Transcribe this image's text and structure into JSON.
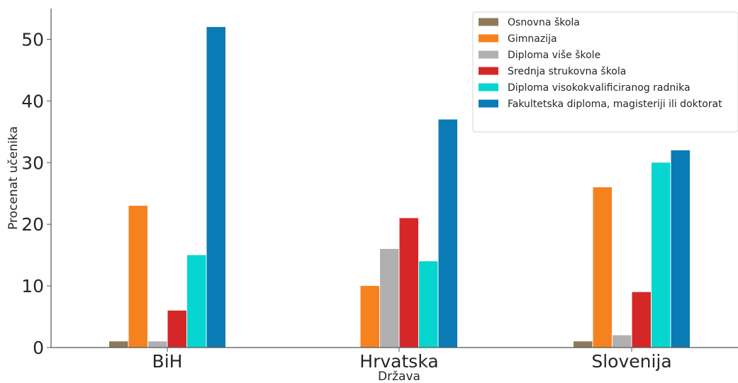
{
  "chart_data": {
    "type": "bar",
    "xlabel": "Država",
    "ylabel": "Procenat učenika",
    "ylim": [
      0,
      55
    ],
    "yticks": [
      0,
      10,
      20,
      30,
      40,
      50
    ],
    "grid": false,
    "legend_position": "top-right",
    "categories": [
      "BiH",
      "Hrvatska",
      "Slovenija"
    ],
    "series": [
      {
        "name": "Osnovna škola",
        "color": "#8c7a5b",
        "values": [
          1,
          0,
          1
        ]
      },
      {
        "name": "Gimnazija",
        "color": "#f5821f",
        "values": [
          23,
          10,
          26
        ]
      },
      {
        "name": "Diploma više škole",
        "color": "#b0b0b0",
        "values": [
          1,
          16,
          2
        ]
      },
      {
        "name": "Srednja strukovna škola",
        "color": "#d62728",
        "values": [
          6,
          21,
          9
        ]
      },
      {
        "name": "Diploma visokokvalificiranog radnika",
        "color": "#06d6d0",
        "values": [
          15,
          14,
          30
        ]
      },
      {
        "name": "Fakultetska diploma, magisteriji ili doktorat",
        "color": "#0a7bb5",
        "values": [
          52,
          37,
          32
        ]
      }
    ]
  }
}
